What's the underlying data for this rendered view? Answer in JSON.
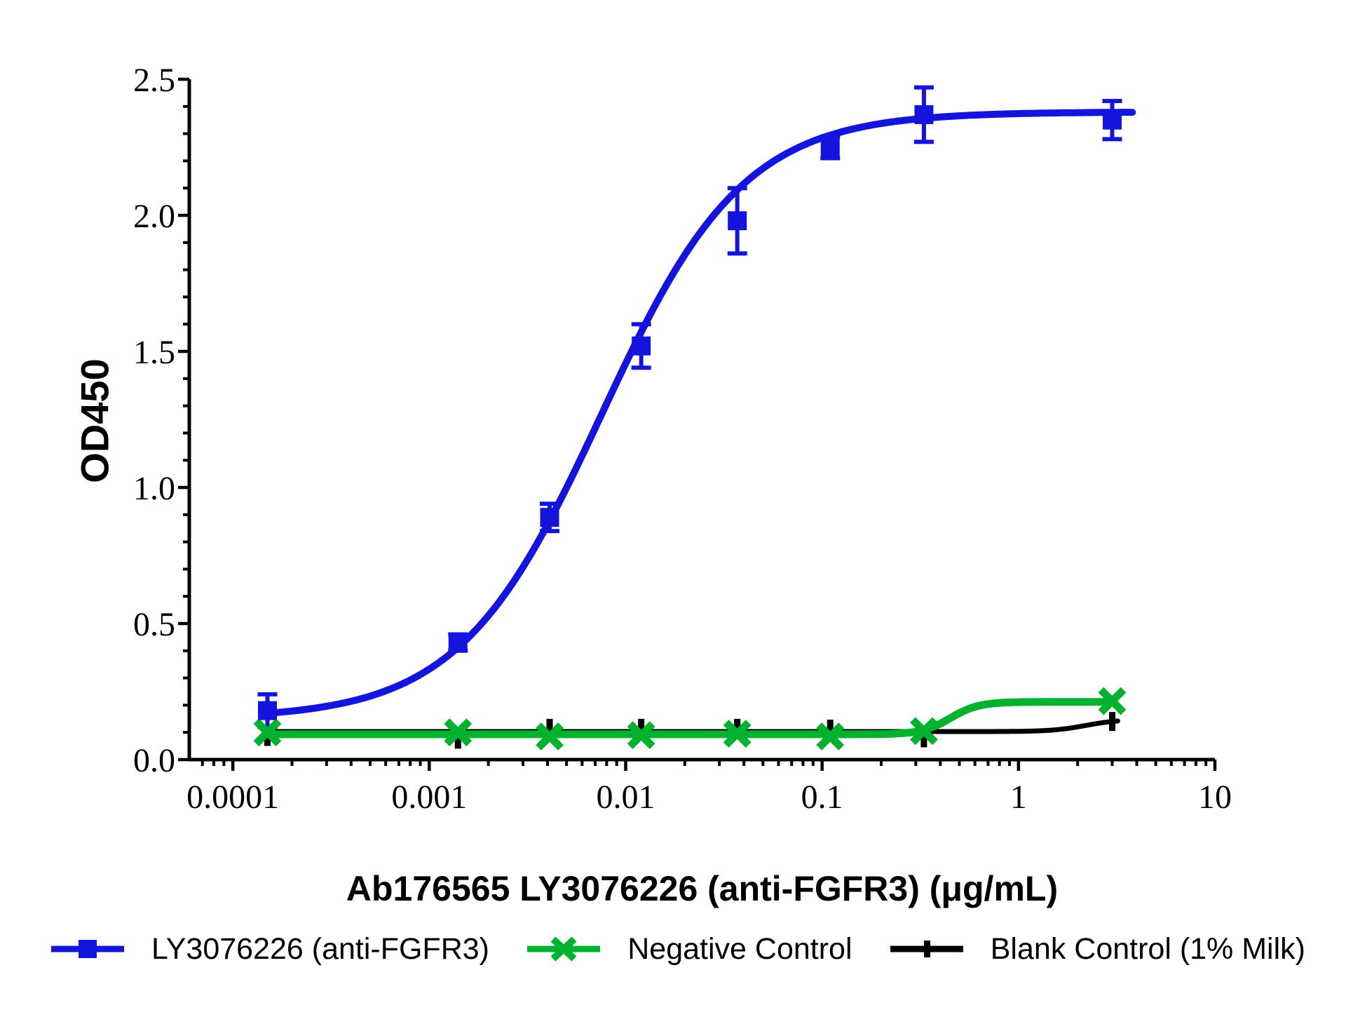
{
  "page": {
    "background": "#ffffff"
  },
  "chart_data": {
    "type": "line",
    "title": "",
    "xlabel": "Ab176565 LY3076226 (anti-FGFR3) (μg/mL)",
    "ylabel": "OD450",
    "x_scale": "log",
    "xlim": [
      6e-05,
      10
    ],
    "ylim": [
      0,
      2.5
    ],
    "x_major_ticks": [
      0.0001,
      0.001,
      0.01,
      0.1,
      1,
      10
    ],
    "x_tick_labels": [
      "0.0001",
      "0.001",
      "0.01",
      "0.1",
      "1",
      "10"
    ],
    "y_major_ticks": [
      0,
      0.5,
      1.0,
      1.5,
      2.0,
      2.5
    ],
    "y_tick_labels": [
      "0.0",
      "0.5",
      "1.0",
      "1.5",
      "2.0",
      "2.5"
    ],
    "y_minor_step": 0.1,
    "grid": false,
    "legend_position": "bottom",
    "series": [
      {
        "name": "LY3076226 (anti-FGFR3)",
        "color": "#1414dc",
        "marker": "square",
        "x": [
          0.00015,
          0.0014,
          0.0041,
          0.012,
          0.037,
          0.11,
          0.33,
          3
        ],
        "y": [
          0.18,
          0.43,
          0.89,
          1.52,
          1.98,
          2.25,
          2.37,
          2.35
        ],
        "yerr": [
          0.06,
          0.03,
          0.05,
          0.08,
          0.12,
          0.04,
          0.1,
          0.07
        ],
        "fit": {
          "type": "4PL",
          "bottom": 0.15,
          "top": 2.38,
          "ec50": 0.0075,
          "hill": 1.2
        }
      },
      {
        "name": "Negative Control",
        "color": "#00b22d",
        "marker": "x",
        "x": [
          0.00015,
          0.0014,
          0.0041,
          0.012,
          0.037,
          0.11,
          0.33,
          3
        ],
        "y": [
          0.1,
          0.1,
          0.085,
          0.09,
          0.095,
          0.085,
          0.105,
          0.215
        ],
        "yerr": [],
        "fit": {
          "type": "4PL",
          "bottom": 0.093,
          "top": 0.212,
          "ec50": 0.45,
          "hill": 6
        }
      },
      {
        "name": "Blank Control (1% Milk)",
        "color": "#000000",
        "marker": "vbar",
        "x": [
          0.00015,
          0.0014,
          0.0041,
          0.012,
          0.037,
          0.11,
          0.33,
          3
        ],
        "y": [
          0.085,
          0.075,
          0.115,
          0.115,
          0.115,
          0.112,
          0.08,
          0.14
        ],
        "yerr": [],
        "fit": {
          "type": "4PL",
          "bottom": 0.103,
          "top": 0.148,
          "ec50": 2.2,
          "hill": 5
        }
      }
    ]
  }
}
